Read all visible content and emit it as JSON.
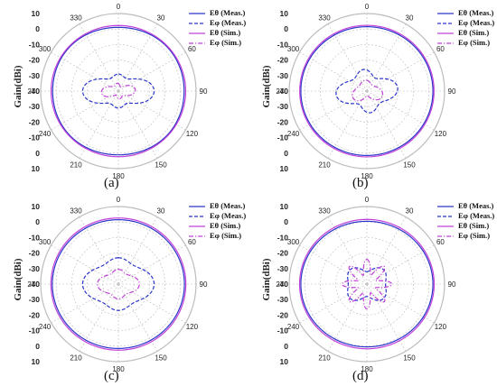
{
  "chart_data": [
    {
      "type": "polar",
      "panel_label": "(a)",
      "ylabel": "Gain(dBi)",
      "radial_ticks": [
        "10",
        "0",
        "-10",
        "-20",
        "-30",
        "-40"
      ],
      "radial_ticks_lower": [
        "-30",
        "-20",
        "-10",
        "0",
        "10"
      ],
      "angle_ticks": [
        "0",
        "30",
        "60",
        "90",
        "120",
        "150",
        "180",
        "210",
        "240",
        "270",
        "300",
        "330"
      ],
      "rlim": [
        -40,
        10
      ],
      "legend": [
        {
          "label": "Eθ (Meas.)",
          "color": "#2b35c8",
          "dash": "solid"
        },
        {
          "label": "Eφ (Meas.)",
          "color": "#2b35c8",
          "dash": "dashed"
        },
        {
          "label": "Eθ (Sim.)",
          "color": "#c040d8",
          "dash": "solid"
        },
        {
          "label": "Eφ (Sim.)",
          "color": "#c040d8",
          "dash": "dashdot"
        }
      ],
      "series": [
        {
          "name": "Eθ (Meas.)",
          "color": "#2b35c8",
          "dash": "solid",
          "base": 2,
          "terms": [
            [
              2,
              -0.6,
              0
            ],
            [
              4,
              -0.3,
              0
            ]
          ]
        },
        {
          "name": "Eφ (Meas.)",
          "color": "#2b35c8",
          "dash": "dashed",
          "base": -26,
          "terms": [
            [
              2,
              -6,
              0
            ],
            [
              4,
              3,
              0
            ]
          ]
        },
        {
          "name": "Eθ (Sim.)",
          "color": "#c040d8",
          "dash": "solid",
          "base": 2.8,
          "terms": [
            [
              2,
              -0.5,
              0
            ]
          ]
        },
        {
          "name": "Eφ (Sim.)",
          "color": "#c040d8",
          "dash": "dashdot",
          "base": -34,
          "terms": [
            [
              2,
              -3,
              0
            ],
            [
              4,
              2,
              0.4
            ]
          ]
        }
      ]
    },
    {
      "type": "polar",
      "panel_label": "(b)",
      "ylabel": "Gain(dBi)",
      "radial_ticks": [
        "10",
        "0",
        "-10",
        "-20",
        "-30",
        "-40"
      ],
      "radial_ticks_lower": [
        "-30",
        "-20",
        "-10",
        "0",
        "10"
      ],
      "angle_ticks": [
        "0",
        "30",
        "60",
        "90",
        "120",
        "150",
        "180",
        "210",
        "240",
        "270",
        "300",
        "330"
      ],
      "rlim": [
        -40,
        10
      ],
      "legend": [
        {
          "label": "Eθ (Meas.)",
          "color": "#2b35c8",
          "dash": "solid"
        },
        {
          "label": "Eφ (Meas.)",
          "color": "#2b35c8",
          "dash": "dashed"
        },
        {
          "label": "Eθ (Sim.)",
          "color": "#c040d8",
          "dash": "solid"
        },
        {
          "label": "Eφ (Sim.)",
          "color": "#c040d8",
          "dash": "dashdot"
        }
      ],
      "series": [
        {
          "name": "Eθ (Meas.)",
          "color": "#2b35c8",
          "dash": "solid",
          "base": 2,
          "terms": [
            [
              2,
              -0.5,
              0
            ]
          ]
        },
        {
          "name": "Eφ (Meas.)",
          "color": "#2b35c8",
          "dash": "dashed",
          "base": -26,
          "terms": [
            [
              2,
              -3,
              0
            ],
            [
              4,
              3,
              0.5
            ]
          ]
        },
        {
          "name": "Eθ (Sim.)",
          "color": "#c040d8",
          "dash": "solid",
          "base": 2.8,
          "terms": [
            [
              2,
              -0.4,
              0
            ]
          ]
        },
        {
          "name": "Eφ (Sim.)",
          "color": "#c040d8",
          "dash": "dashdot",
          "base": -33,
          "terms": [
            [
              2,
              -2,
              0
            ],
            [
              3,
              2,
              0.3
            ]
          ]
        }
      ]
    },
    {
      "type": "polar",
      "panel_label": "(c)",
      "ylabel": "Gain(dBi)",
      "radial_ticks": [
        "10",
        "0",
        "-10",
        "-20",
        "-30",
        "-40"
      ],
      "radial_ticks_lower": [
        "-30",
        "-20",
        "-10",
        "0",
        "10"
      ],
      "angle_ticks": [
        "0",
        "30",
        "60",
        "90",
        "120",
        "150",
        "180",
        "210",
        "240",
        "270",
        "300",
        "330"
      ],
      "rlim": [
        -40,
        10
      ],
      "legend": [
        {
          "label": "Eθ (Meas.)",
          "color": "#2b35c8",
          "dash": "solid"
        },
        {
          "label": "Eφ (Meas.)",
          "color": "#2b35c8",
          "dash": "dashed"
        },
        {
          "label": "Eθ (Sim.)",
          "color": "#c040d8",
          "dash": "solid"
        },
        {
          "label": "Eφ (Sim.)",
          "color": "#c040d8",
          "dash": "dashdot"
        }
      ],
      "series": [
        {
          "name": "Eθ (Meas.)",
          "color": "#2b35c8",
          "dash": "solid",
          "base": 2,
          "terms": [
            [
              2,
              -0.5,
              0
            ]
          ]
        },
        {
          "name": "Eφ (Meas.)",
          "color": "#2b35c8",
          "dash": "dashed",
          "base": -22,
          "terms": [
            [
              2,
              -3,
              0
            ],
            [
              4,
              2,
              0
            ]
          ]
        },
        {
          "name": "Eθ (Sim.)",
          "color": "#c040d8",
          "dash": "solid",
          "base": 3,
          "terms": [
            [
              2,
              -0.4,
              0
            ]
          ]
        },
        {
          "name": "Eφ (Sim.)",
          "color": "#c040d8",
          "dash": "dashdot",
          "base": -30,
          "terms": [
            [
              2,
              -2,
              0
            ],
            [
              4,
              1.5,
              0
            ]
          ]
        }
      ]
    },
    {
      "type": "polar",
      "panel_label": "(d)",
      "ylabel": "Gain(dBi)",
      "radial_ticks": [
        "10",
        "0",
        "-10",
        "-20",
        "-30",
        "-40"
      ],
      "radial_ticks_lower": [
        "-30",
        "-20",
        "-10",
        "0",
        "10"
      ],
      "angle_ticks": [
        "0",
        "30",
        "60",
        "90",
        "120",
        "150",
        "180",
        "210",
        "240",
        "270",
        "300",
        "330"
      ],
      "rlim": [
        -40,
        10
      ],
      "legend": [
        {
          "label": "Eθ (Meas.)",
          "color": "#2b35c8",
          "dash": "solid"
        },
        {
          "label": "Eφ (Meas.)",
          "color": "#2b35c8",
          "dash": "dashed"
        },
        {
          "label": "Eθ (Sim.)",
          "color": "#c040d8",
          "dash": "solid"
        },
        {
          "label": "Eφ (Sim.)",
          "color": "#c040d8",
          "dash": "dashdot"
        }
      ],
      "series": [
        {
          "name": "Eθ (Meas.)",
          "color": "#2b35c8",
          "dash": "solid",
          "base": 1.5,
          "terms": [
            [
              2,
              -1,
              0
            ]
          ]
        },
        {
          "name": "Eφ (Meas.)",
          "color": "#2b35c8",
          "dash": "dashed",
          "base": -28,
          "terms": [
            [
              2,
              -2,
              0
            ],
            [
              4,
              -2,
              0
            ]
          ]
        },
        {
          "name": "Eθ (Sim.)",
          "color": "#c040d8",
          "dash": "solid",
          "base": 2.5,
          "terms": [
            [
              2,
              -0.8,
              0
            ]
          ]
        },
        {
          "name": "Eφ (Sim.)",
          "color": "#c040d8",
          "dash": "dashdot",
          "base": -29,
          "terms": [
            [
              8,
              5,
              0
            ]
          ]
        }
      ]
    }
  ]
}
